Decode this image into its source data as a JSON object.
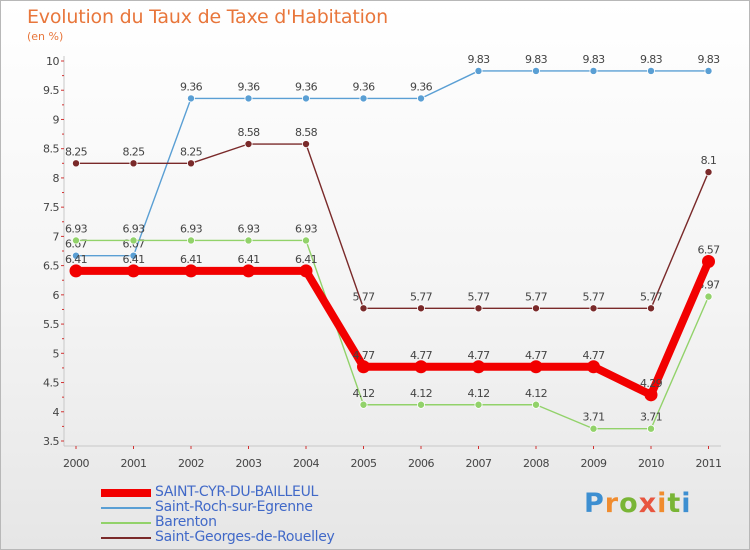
{
  "header": {
    "title": "Evolution du Taux de Taxe d'Habitation",
    "subtitle": "(en %)"
  },
  "brand": {
    "name": "Proxiti",
    "letter_colors": [
      "#3d8fd1",
      "#f08c2e",
      "#79b536",
      "#e8553f",
      "#f08c2e",
      "#79b536",
      "#3d8fd1"
    ]
  },
  "chart_data": {
    "type": "line",
    "x": [
      "2000",
      "2001",
      "2002",
      "2003",
      "2004",
      "2005",
      "2006",
      "2007",
      "2008",
      "2009",
      "2010",
      "2011"
    ],
    "ylim": [
      3.5,
      10
    ],
    "yticks": [
      "3.5",
      "4",
      "4.5",
      "5",
      "5.5",
      "6",
      "6.5",
      "7",
      "7.5",
      "8",
      "8.5",
      "9",
      "9.5",
      "10"
    ],
    "grid": false,
    "legend_position": "bottom-left",
    "series": [
      {
        "name": "Saint-Roch-sur-Egrenne",
        "color": "#5a9fd4",
        "values": [
          6.67,
          6.67,
          9.36,
          9.36,
          9.36,
          9.36,
          9.36,
          9.83,
          9.83,
          9.83,
          9.83,
          9.83
        ],
        "labels": [
          "6.67",
          "6.67",
          "9.36",
          "9.36",
          "9.36",
          "9.36",
          "9.36",
          "9.83",
          "9.83",
          "9.83",
          "9.83",
          "9.83"
        ]
      },
      {
        "name": "Barenton",
        "color": "#92d26a",
        "values": [
          6.93,
          6.93,
          6.93,
          6.93,
          6.93,
          4.12,
          4.12,
          4.12,
          4.12,
          3.71,
          3.71,
          5.97
        ],
        "labels": [
          "6.93",
          "6.93",
          "6.93",
          "6.93",
          "6.93",
          "4.12",
          "4.12",
          "4.12",
          "4.12",
          "3.71",
          "3.71",
          "5.97"
        ]
      },
      {
        "name": "Saint-Georges-de-Rouelley",
        "color": "#7a2a2a",
        "values": [
          8.25,
          8.25,
          8.25,
          8.58,
          8.58,
          5.77,
          5.77,
          5.77,
          5.77,
          5.77,
          5.77,
          8.1
        ],
        "labels": [
          "8.25",
          "8.25",
          "8.25",
          "8.58",
          "8.58",
          "5.77",
          "5.77",
          "5.77",
          "5.77",
          "5.77",
          "5.77",
          "8.1"
        ]
      },
      {
        "name": "SAINT-CYR-DU-BAILLEUL",
        "color": "#f20000",
        "values": [
          6.41,
          6.41,
          6.41,
          6.41,
          6.41,
          4.77,
          4.77,
          4.77,
          4.77,
          4.77,
          4.29,
          6.57
        ],
        "labels": [
          "6.41",
          "6.41",
          "6.41",
          "6.41",
          "6.41",
          "4.77",
          "4.77",
          "4.77",
          "4.77",
          "4.77",
          "4.29",
          "6.57"
        ]
      }
    ],
    "legend_order": [
      3,
      0,
      1,
      2
    ]
  }
}
